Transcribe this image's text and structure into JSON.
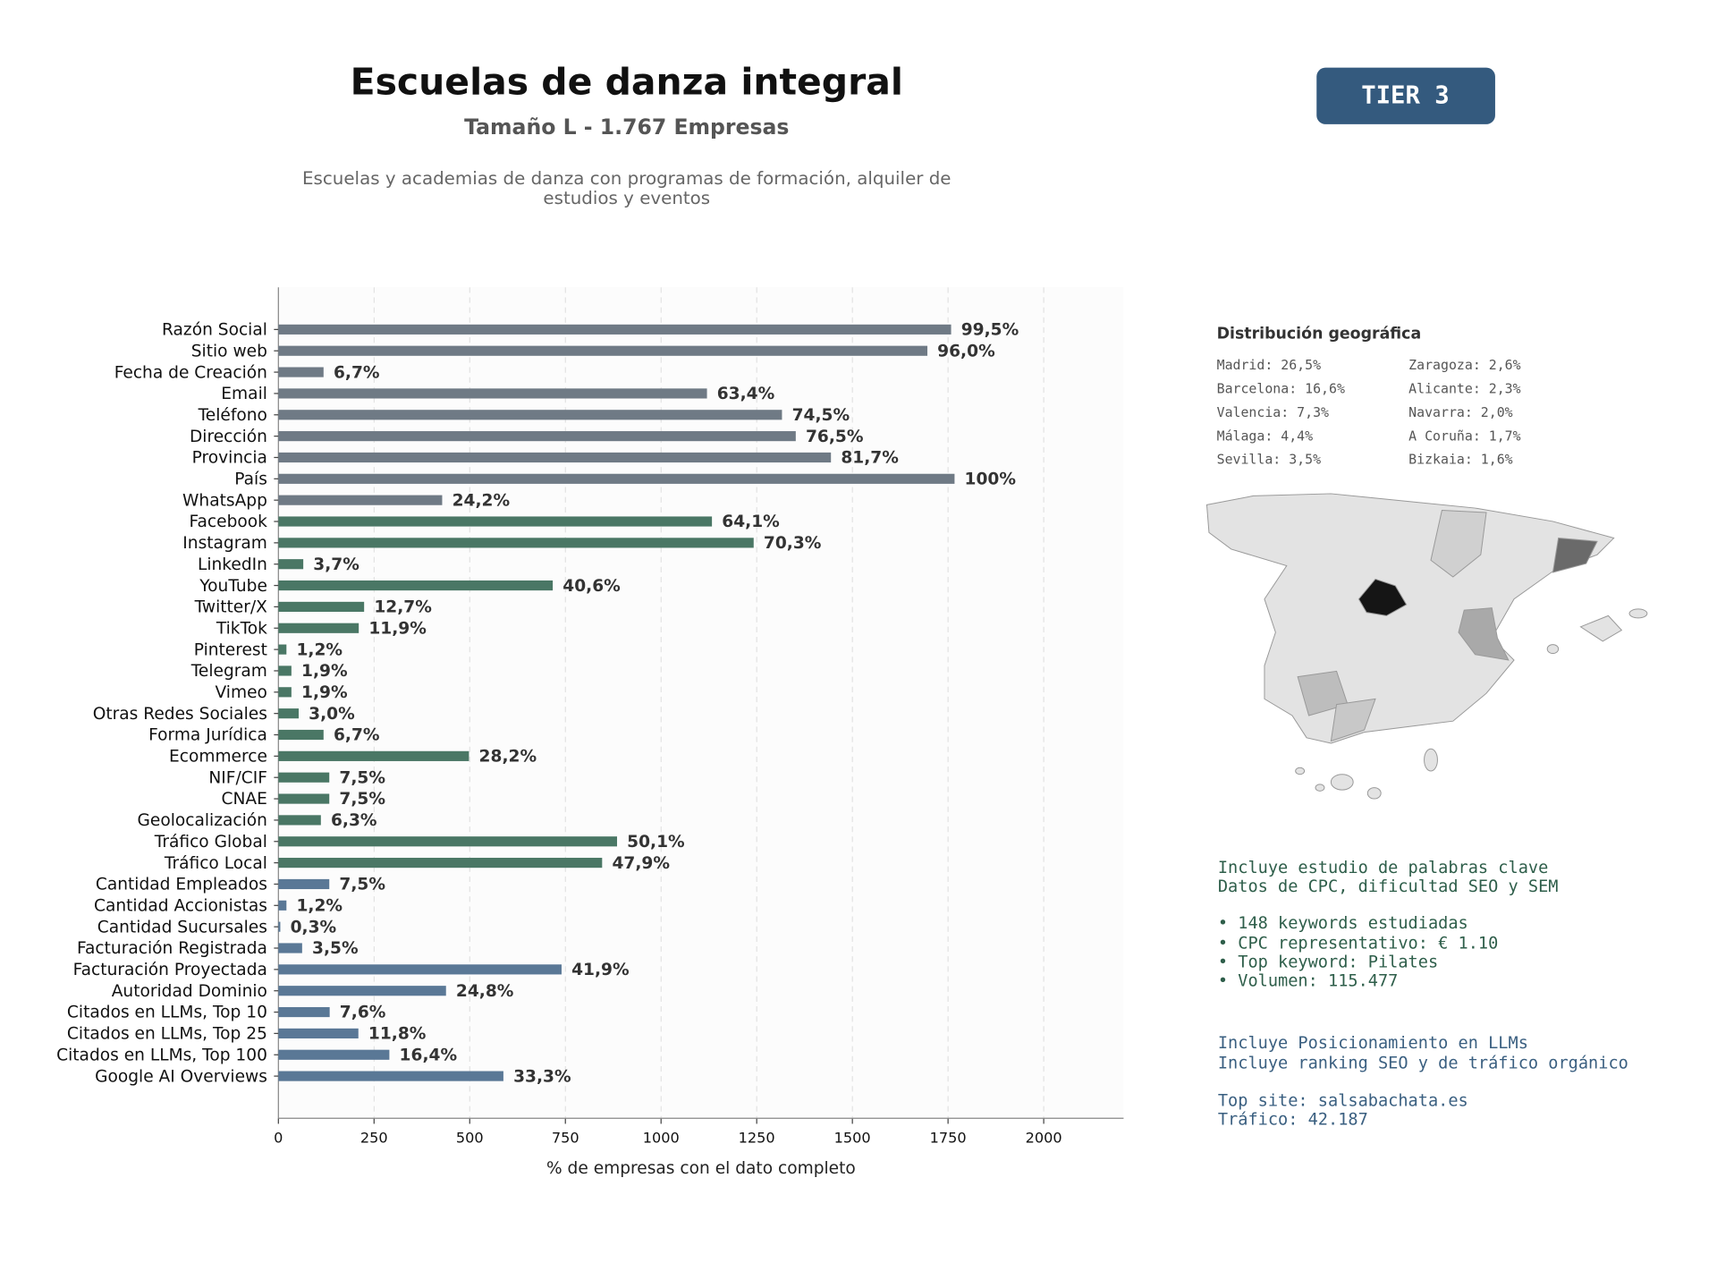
{
  "header": {
    "title": "Escuelas de danza integral",
    "subtitle": "Tamaño L - 1.767 Empresas",
    "description": [
      "Escuelas y academias de danza con programas de formación, alquiler de",
      "estudios y eventos"
    ],
    "badge": "TIER 3"
  },
  "chart_data": {
    "type": "barh",
    "categories": [
      "Razón Social",
      "Sitio web",
      "Fecha de Creación",
      "Email",
      "Teléfono",
      "Dirección",
      "Provincia",
      "País",
      "WhatsApp",
      "Facebook",
      "Instagram",
      "LinkedIn",
      "YouTube",
      "Twitter/X",
      "TikTok",
      "Pinterest",
      "Telegram",
      "Vimeo",
      "Otras Redes Sociales",
      "Forma Jurídica",
      "Ecommerce",
      "NIF/CIF",
      "CNAE",
      "Geolocalización",
      "Tráfico Global",
      "Tráfico Local",
      "Cantidad Empleados",
      "Cantidad Accionistas",
      "Cantidad Sucursales",
      "Facturación Registrada",
      "Facturación Proyectada",
      "Autoridad Dominio",
      "Citados en LLMs, Top 10",
      "Citados en LLMs, Top 25",
      "Citados en LLMs, Top 100",
      "Google AI Overviews"
    ],
    "values": [
      1758,
      1696,
      118,
      1120,
      1316,
      1352,
      1444,
      1767,
      428,
      1133,
      1242,
      65,
      717,
      224,
      210,
      21,
      34,
      34,
      53,
      118,
      498,
      133,
      133,
      111,
      885,
      846,
      133,
      21,
      5,
      62,
      740,
      438,
      134,
      209,
      290,
      588
    ],
    "value_labels": [
      "99,5%",
      "96,0%",
      "6,7%",
      "63,4%",
      "74,5%",
      "76,5%",
      "81,7%",
      "100%",
      "24,2%",
      "64,1%",
      "70,3%",
      "3,7%",
      "40,6%",
      "12,7%",
      "11,9%",
      "1,2%",
      "1,9%",
      "1,9%",
      "3,0%",
      "6,7%",
      "28,2%",
      "7,5%",
      "7,5%",
      "6,3%",
      "50,1%",
      "47,9%",
      "7,5%",
      "1,2%",
      "0,3%",
      "3,5%",
      "41,9%",
      "24,8%",
      "7,6%",
      "11,8%",
      "16,4%",
      "33,3%"
    ],
    "colors": [
      "#6f7a85",
      "#6f7a85",
      "#6f7a85",
      "#6f7a85",
      "#6f7a85",
      "#6f7a85",
      "#6f7a85",
      "#6f7a85",
      "#6f7a85",
      "#4a7765",
      "#4a7765",
      "#4a7765",
      "#4a7765",
      "#4a7765",
      "#4a7765",
      "#4a7765",
      "#4a7765",
      "#4a7765",
      "#4a7765",
      "#4a7765",
      "#4a7765",
      "#4a7765",
      "#4a7765",
      "#4a7765",
      "#4a7765",
      "#4a7765",
      "#5a7896",
      "#5a7896",
      "#5a7896",
      "#5a7896",
      "#5a7896",
      "#5a7896",
      "#5a7896",
      "#5a7896",
      "#5a7896",
      "#5a7896"
    ],
    "xlim": [
      0,
      2208.75
    ],
    "xticks": [
      0,
      250,
      500,
      750,
      1000,
      1250,
      1500,
      1750,
      2000
    ],
    "grid": true,
    "xlabel": "% de empresas con el dato completo"
  },
  "geo": {
    "title": "Distribución geográfica",
    "regions": [
      "Madrid: 26,5%",
      "Barcelona: 16,6%",
      "Valencia: 7,3%",
      "Málaga: 4,4%",
      "Sevilla: 3,5%",
      "Zaragoza: 2,6%",
      "Alicante: 2,3%",
      "Navarra: 2,0%",
      "A Coruña: 1,7%",
      "Bizkaia: 1,6%"
    ]
  },
  "keywords": {
    "lines": [
      "Incluye estudio de palabras clave",
      "Datos de CPC, dificultad SEO y SEM",
      "• 148 keywords estudiadas",
      "• CPC representativo: € 1.10",
      "• Top keyword: Pilates",
      "• Volumen: 115.477"
    ]
  },
  "llm": {
    "lines": [
      "Incluye Posicionamiento en LLMs",
      "Incluye ranking SEO y de tráfico orgánico",
      "Top site: salsabachata.es",
      "Tráfico: 42.187"
    ]
  }
}
